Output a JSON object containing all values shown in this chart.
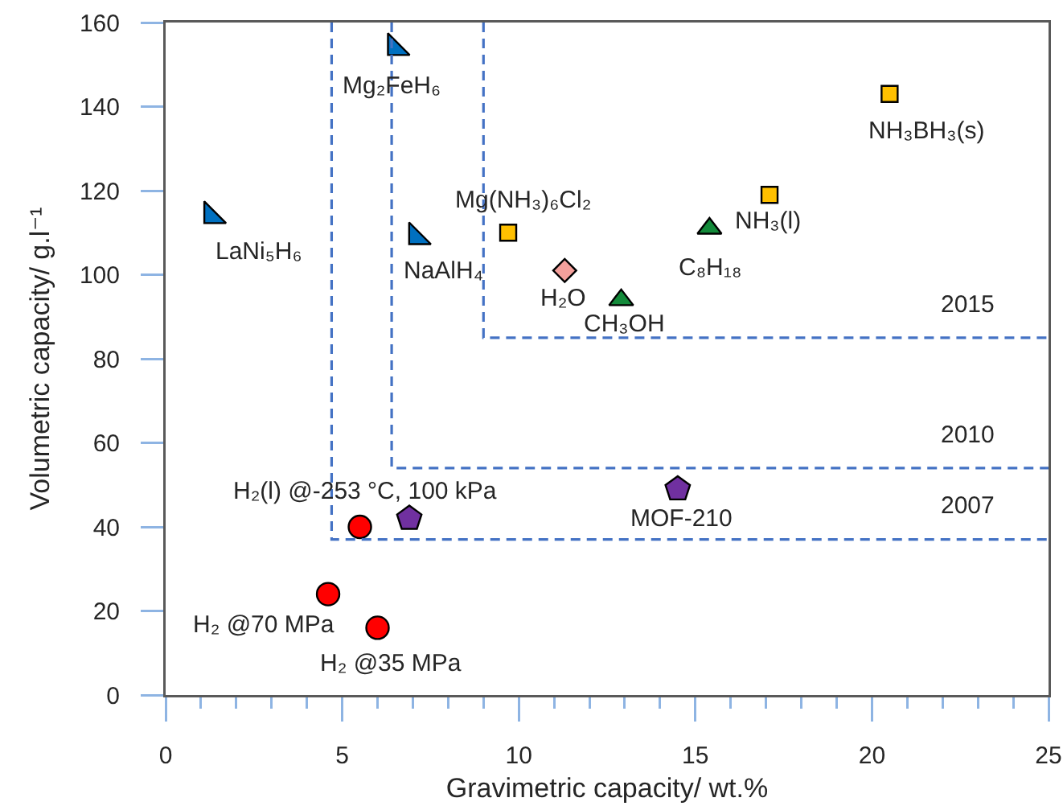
{
  "chart_data": {
    "type": "scatter",
    "xlabel": "Gravimetric capacity/ wt.%",
    "ylabel": "Volumetric capacity/ g.l⁻¹",
    "xlim": [
      0,
      25
    ],
    "ylim": [
      0,
      160
    ],
    "xticks": [
      0,
      {
        "value": 1,
        "label": null
      },
      {
        "value": 2,
        "label": null
      },
      {
        "value": 3,
        "label": null
      },
      {
        "value": 4,
        "label": null
      },
      5,
      {
        "value": 6,
        "label": null
      },
      {
        "value": 7,
        "label": null
      },
      {
        "value": 8,
        "label": null
      },
      {
        "value": 9,
        "label": null
      },
      10,
      {
        "value": 11,
        "label": null
      },
      {
        "value": 12,
        "label": null
      },
      {
        "value": 13,
        "label": null
      },
      {
        "value": 14,
        "label": null
      },
      15,
      {
        "value": 16,
        "label": null
      },
      {
        "value": 17,
        "label": null
      },
      {
        "value": 18,
        "label": null
      },
      {
        "value": 19,
        "label": null
      },
      20,
      {
        "value": 21,
        "label": null
      },
      {
        "value": 22,
        "label": null
      },
      {
        "value": 23,
        "label": null
      },
      {
        "value": 24,
        "label": null
      },
      25
    ],
    "yticks": [
      0,
      20,
      40,
      60,
      80,
      100,
      120,
      140,
      160
    ],
    "series": [
      {
        "name": "Mg₂FeH₆",
        "marker": "triangle",
        "color": "#0070c0",
        "x": [
          6.5
        ],
        "values": [
          154
        ]
      },
      {
        "name": "LaNi₅H₆",
        "marker": "triangle",
        "color": "#0070c0",
        "x": [
          1.3
        ],
        "values": [
          114
        ]
      },
      {
        "name": "NaAlH₄",
        "marker": "triangle",
        "color": "#0070c0",
        "x": [
          7.1
        ],
        "values": [
          109
        ]
      },
      {
        "name": "Mg(NH₃)₆Cl₂",
        "marker": "square",
        "color": "#ffc000",
        "x": [
          9.7
        ],
        "values": [
          110
        ]
      },
      {
        "name": "H₂O",
        "marker": "diamond",
        "color": "#f4a09c",
        "x": [
          11.3
        ],
        "values": [
          101
        ]
      },
      {
        "name": "CH₃OH",
        "marker": "triangle",
        "color": "#138a3a",
        "x": [
          12.9
        ],
        "values": [
          94
        ]
      },
      {
        "name": "C₈H₁₈",
        "marker": "triangle",
        "color": "#138a3a",
        "x": [
          15.4
        ],
        "values": [
          111
        ]
      },
      {
        "name": "NH₃(l)",
        "marker": "square",
        "color": "#ffc000",
        "x": [
          17.1
        ],
        "values": [
          119
        ]
      },
      {
        "name": "NH₃BH₃(s)",
        "marker": "square",
        "color": "#ffc000",
        "x": [
          20.5
        ],
        "values": [
          143
        ]
      },
      {
        "name": "MOF-210",
        "color": "#7030a0",
        "x": [
          14.5
        ],
        "values": [
          49
        ]
      },
      {
        "color": "#7030a0",
        "x": [
          6.9
        ],
        "values": [
          42
        ]
      },
      {
        "name": "H₂(l) @-253 °C, 100 kPa",
        "marker": "circle",
        "color": "#ff0000",
        "x": [
          5.5
        ],
        "values": [
          40
        ]
      },
      {
        "name": "H₂ @70 MPa",
        "marker": "circle",
        "color": "#ff0000",
        "x": [
          4.6
        ],
        "values": [
          24
        ]
      },
      {
        "name": "H₂ @35 MPa",
        "marker": "circle",
        "color": "#ff0000",
        "x": [
          6.0
        ],
        "values": [
          16
        ]
      },
      {
        "name": "2015",
        "type": "line",
        "line_style": "dashed",
        "marker": "none",
        "color": "#4472c4",
        "x": [
          9.0,
          9.0,
          25
        ],
        "values": [
          160,
          85,
          85
        ]
      },
      {
        "name": "2010",
        "type": "line",
        "line_style": "dashed",
        "marker": "none",
        "color": "#4472c4",
        "x": [
          6.4,
          6.4,
          25
        ],
        "values": [
          160,
          54,
          54
        ]
      },
      {
        "name": "2007",
        "type": "line",
        "line_style": "dashed",
        "marker": "none",
        "color": "#4472c4",
        "x": [
          4.7,
          4.7,
          25
        ],
        "values": [
          160,
          37,
          37
        ]
      }
    ]
  }
}
